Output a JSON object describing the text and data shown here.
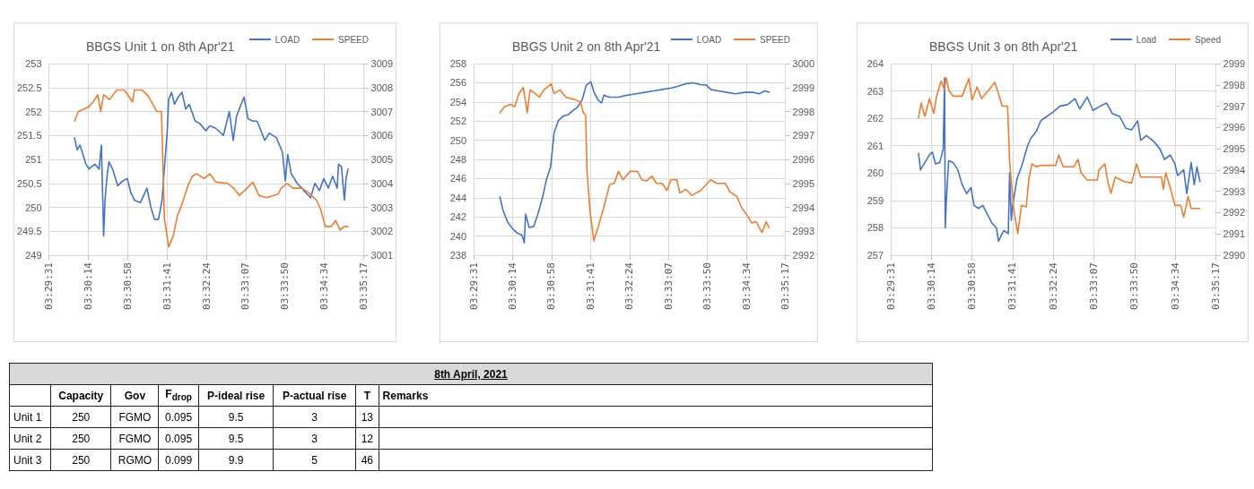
{
  "chart_data": [
    {
      "type": "line",
      "title": "BBGS Unit 1 on 8th Apr'21",
      "legend": "top right",
      "grid": true,
      "xlim": [
        3.492,
        3.588
      ],
      "xticks": [
        {
          "value": 3.492,
          "label": "03:29:31"
        },
        {
          "value": 3.504,
          "label": "03:30:14"
        },
        {
          "value": 3.516,
          "label": "03:30:58"
        },
        {
          "value": 3.528,
          "label": "03:31:41"
        },
        {
          "value": 3.54,
          "label": "03:32:24"
        },
        {
          "value": 3.552,
          "label": "03:33:07"
        },
        {
          "value": 3.564,
          "label": "03:33:50"
        },
        {
          "value": 3.576,
          "label": "03:34:34"
        },
        {
          "value": 3.588,
          "label": "03:35:17"
        }
      ],
      "ylim": [
        249,
        253
      ],
      "yticks": [
        249,
        249.5,
        250,
        250.5,
        251,
        251.5,
        252,
        252.5,
        253
      ],
      "y2lim": [
        3001,
        3009
      ],
      "y2ticks": [
        3001,
        3002,
        3003,
        3004,
        3005,
        3006,
        3007,
        3008,
        3009
      ],
      "series": [
        {
          "name": "LOAD",
          "color": "#4472c4",
          "x": [
            3.4998,
            3.5006,
            3.5015,
            3.5024,
            3.5033,
            3.5042,
            3.506,
            3.5073,
            3.508,
            3.5087,
            3.5091,
            3.5098,
            3.5103,
            3.5114,
            3.513,
            3.5145,
            3.5159,
            3.517,
            3.5181,
            3.5199,
            3.5219,
            3.5231,
            3.5242,
            3.5254,
            3.5265,
            3.5272,
            3.5281,
            3.5285,
            3.5294,
            3.5303,
            3.5314,
            3.5326,
            3.5337,
            3.5348,
            3.5366,
            3.538,
            3.5398,
            3.5411,
            3.5429,
            3.5452,
            3.547,
            3.5482,
            3.5492,
            3.5506,
            3.5515,
            3.5527,
            3.5542,
            3.5555,
            3.5578,
            3.5592,
            3.5614,
            3.5632,
            3.5641,
            3.5648,
            3.5659,
            3.5677,
            3.5691,
            3.5704,
            3.5718,
            3.5731,
            3.5745,
            3.5758,
            3.5772,
            3.5785,
            3.5799,
            3.5803,
            3.5812,
            3.5821,
            3.5826,
            3.5832
          ],
          "values": [
            251.45,
            251.2,
            251.3,
            251.1,
            250.9,
            250.8,
            250.9,
            250.8,
            251.3,
            249.4,
            250.15,
            250.7,
            250.95,
            250.8,
            250.45,
            250.55,
            250.6,
            250.3,
            250.15,
            250.1,
            250.4,
            250.0,
            249.75,
            249.75,
            250.15,
            250.8,
            251.6,
            252.25,
            252.4,
            252.15,
            252.3,
            252.4,
            252.05,
            252.15,
            251.8,
            251.75,
            251.6,
            251.7,
            251.65,
            251.5,
            252.0,
            251.4,
            251.9,
            252.15,
            252.3,
            251.85,
            251.8,
            251.8,
            251.4,
            251.55,
            251.45,
            251.15,
            250.55,
            251.1,
            250.7,
            250.5,
            250.4,
            250.3,
            250.2,
            250.5,
            250.35,
            250.6,
            250.4,
            250.65,
            250.4,
            250.9,
            250.85,
            250.15,
            250.6,
            250.8
          ]
        },
        {
          "name": "SPEED",
          "color": "#ed7d31",
          "axis": "y2",
          "x": [
            3.4998,
            3.501,
            3.5042,
            3.5055,
            3.5069,
            3.5078,
            3.5087,
            3.5105,
            3.5127,
            3.515,
            3.5175,
            3.5181,
            3.5204,
            3.5222,
            3.5235,
            3.5249,
            3.5263,
            3.5267,
            3.5272,
            3.5285,
            3.5299,
            3.5312,
            3.5326,
            3.5344,
            3.5357,
            3.5371,
            3.5393,
            3.5411,
            3.5429,
            3.5465,
            3.5483,
            3.5501,
            3.5524,
            3.5542,
            3.556,
            3.5583,
            3.5619,
            3.5628,
            3.5646,
            3.5664,
            3.5691,
            3.5713,
            3.5736,
            3.5749,
            3.5763,
            3.5781,
            3.5794,
            3.5808,
            3.5821,
            3.5832
          ],
          "values": [
            3006.6,
            3007.0,
            3007.2,
            3007.4,
            3007.7,
            3007.0,
            3007.7,
            3007.5,
            3007.9,
            3007.9,
            3007.4,
            3007.9,
            3007.9,
            3007.65,
            3007.35,
            3007.0,
            3007.0,
            3005.15,
            3002.55,
            3001.35,
            3001.8,
            3002.65,
            3003.15,
            3003.9,
            3004.3,
            3004.4,
            3004.2,
            3004.4,
            3004.05,
            3004.0,
            3003.8,
            3003.5,
            3003.8,
            3004.05,
            3003.5,
            3003.4,
            3003.55,
            3003.8,
            3004.0,
            3003.8,
            3003.8,
            3003.6,
            3003.3,
            3002.9,
            3002.2,
            3002.2,
            3002.45,
            3002.05,
            3002.2,
            3002.2
          ]
        }
      ]
    },
    {
      "type": "line",
      "title": "BBGS Unit 2 on 8th Apr'21",
      "legend": "top right",
      "grid": true,
      "xlim": [
        3.492,
        3.588
      ],
      "xticks": [
        {
          "value": 3.492,
          "label": "03:29:31"
        },
        {
          "value": 3.504,
          "label": "03:30:14"
        },
        {
          "value": 3.516,
          "label": "03:30:58"
        },
        {
          "value": 3.528,
          "label": "03:31:41"
        },
        {
          "value": 3.54,
          "label": "03:32:24"
        },
        {
          "value": 3.552,
          "label": "03:33:07"
        },
        {
          "value": 3.564,
          "label": "03:33:50"
        },
        {
          "value": 3.576,
          "label": "03:34:34"
        },
        {
          "value": 3.588,
          "label": "03:35:17"
        }
      ],
      "ylim": [
        238,
        258
      ],
      "yticks": [
        238,
        240,
        242,
        244,
        246,
        248,
        250,
        252,
        254,
        256,
        258
      ],
      "y2lim": [
        2992,
        3000
      ],
      "y2ticks": [
        2992,
        2993,
        2994,
        2995,
        2996,
        2997,
        2998,
        2999,
        3000
      ],
      "series": [
        {
          "name": "LOAD",
          "color": "#4472c4",
          "x": [
            3.5001,
            3.501,
            3.5024,
            3.5042,
            3.5055,
            3.5069,
            3.5076,
            3.508,
            3.5091,
            3.5105,
            3.5118,
            3.5132,
            3.5145,
            3.5157,
            3.5168,
            3.5181,
            3.5195,
            3.5213,
            3.5226,
            3.524,
            3.5254,
            3.5267,
            3.5281,
            3.529,
            3.5303,
            3.5314,
            3.5321,
            3.5339,
            3.5366,
            3.5393,
            3.542,
            3.5447,
            3.5474,
            3.5501,
            3.5528,
            3.5546,
            3.5574,
            3.5596,
            3.5619,
            3.5637,
            3.565,
            3.5673,
            3.57,
            3.5727,
            3.5754,
            3.5781,
            3.5799,
            3.5817,
            3.583
          ],
          "values": [
            244.1,
            242.75,
            241.5,
            240.7,
            240.3,
            240.1,
            239.3,
            242.3,
            240.9,
            241.0,
            242.3,
            244.0,
            246.0,
            247.2,
            250.8,
            252.05,
            252.5,
            252.7,
            253.1,
            253.45,
            254.2,
            255.75,
            256.1,
            255.1,
            254.2,
            253.9,
            254.7,
            254.5,
            254.5,
            254.7,
            254.85,
            255.0,
            255.15,
            255.3,
            255.45,
            255.6,
            255.9,
            256.0,
            255.8,
            255.75,
            255.3,
            255.15,
            255.0,
            254.85,
            255.0,
            255.0,
            254.85,
            255.15,
            255.0
          ]
        },
        {
          "name": "SPEED",
          "color": "#ed7d31",
          "axis": "y2",
          "x": [
            3.5001,
            3.5015,
            3.5033,
            3.5046,
            3.506,
            3.5073,
            3.5085,
            3.5094,
            3.5109,
            3.5123,
            3.5136,
            3.5159,
            3.5168,
            3.5186,
            3.5204,
            3.5231,
            3.5249,
            3.5258,
            3.5265,
            3.5269,
            3.5278,
            3.529,
            3.5303,
            3.5321,
            3.5339,
            3.5353,
            3.5366,
            3.538,
            3.5402,
            3.5425,
            3.5438,
            3.5452,
            3.547,
            3.5483,
            3.5501,
            3.5515,
            3.5528,
            3.5546,
            3.5555,
            3.5574,
            3.5592,
            3.5619,
            3.565,
            3.5668,
            3.5695,
            3.5709,
            3.5731,
            3.5745,
            3.5763,
            3.5776,
            3.579,
            3.5808,
            3.5821,
            3.583
          ],
          "values": [
            2997.95,
            2998.2,
            2998.3,
            2998.2,
            2998.75,
            2999.0,
            2997.95,
            2998.9,
            2998.75,
            2998.6,
            2998.9,
            2999.15,
            2998.75,
            2998.9,
            2998.6,
            2998.5,
            2998.4,
            2997.95,
            2997.85,
            2995.6,
            2993.9,
            2992.6,
            2993.15,
            2994.0,
            2994.95,
            2995.0,
            2995.5,
            2995.15,
            2995.5,
            2995.5,
            2995.15,
            2995.1,
            2995.3,
            2995.0,
            2995.0,
            2994.7,
            2995.15,
            2995.15,
            2994.6,
            2994.75,
            2994.5,
            2994.7,
            2995.15,
            2995.0,
            2995.0,
            2994.65,
            2994.45,
            2994.0,
            2993.65,
            2993.35,
            2993.4,
            2992.95,
            2993.4,
            2993.15
          ]
        }
      ]
    },
    {
      "type": "line",
      "title": "BBGS Unit 3 on 8th Apr'21",
      "legend": "top right",
      "grid": true,
      "xlim": [
        3.492,
        3.588
      ],
      "xticks": [
        {
          "value": 3.492,
          "label": "03:29:31"
        },
        {
          "value": 3.504,
          "label": "03:30:14"
        },
        {
          "value": 3.516,
          "label": "03:30:58"
        },
        {
          "value": 3.528,
          "label": "03:31:41"
        },
        {
          "value": 3.54,
          "label": "03:32:24"
        },
        {
          "value": 3.552,
          "label": "03:33:07"
        },
        {
          "value": 3.564,
          "label": "03:33:50"
        },
        {
          "value": 3.576,
          "label": "03:34:34"
        },
        {
          "value": 3.588,
          "label": "03:35:17"
        }
      ],
      "ylim": [
        257,
        264
      ],
      "yticks": [
        257,
        258,
        259,
        260,
        261,
        262,
        263,
        264
      ],
      "y2lim": [
        2990,
        2999
      ],
      "y2ticks": [
        2990,
        2991,
        2992,
        2993,
        2994,
        2995,
        2996,
        2997,
        2998,
        2999
      ],
      "series": [
        {
          "name": "Load",
          "color": "#4472c4",
          "x": [
            3.5002,
            3.5008,
            3.5021,
            3.5034,
            3.5043,
            3.5052,
            3.5065,
            3.5075,
            3.5079,
            3.5081,
            3.5084,
            3.5091,
            3.5104,
            3.5118,
            3.5131,
            3.5144,
            3.5157,
            3.5166,
            3.5179,
            3.5192,
            3.5205,
            3.5219,
            3.5232,
            3.5238,
            3.5254,
            3.5267,
            3.5271,
            3.5276,
            3.528,
            3.5293,
            3.5306,
            3.5324,
            3.5333,
            3.535,
            3.5363,
            3.5381,
            3.5399,
            3.542,
            3.5442,
            3.5464,
            3.5478,
            3.55,
            3.5517,
            3.5539,
            3.5557,
            3.5574,
            3.5596,
            3.5614,
            3.5631,
            3.5649,
            3.5658,
            3.5675,
            3.5697,
            3.5715,
            3.5728,
            3.5745,
            3.5759,
            3.5767,
            3.5785,
            3.5794,
            3.5807,
            3.5816,
            3.5824,
            3.5833
          ],
          "values": [
            260.72,
            260.12,
            260.39,
            260.66,
            260.77,
            260.34,
            260.39,
            260.88,
            263.48,
            258.0,
            258.93,
            260.45,
            260.39,
            260.12,
            259.58,
            259.25,
            259.47,
            258.82,
            258.71,
            258.82,
            258.5,
            258.17,
            258.0,
            257.52,
            257.9,
            257.79,
            260.01,
            258.28,
            258.82,
            259.8,
            260.23,
            260.99,
            261.26,
            261.53,
            261.91,
            262.07,
            262.23,
            262.45,
            262.5,
            262.72,
            262.34,
            262.78,
            262.29,
            262.45,
            262.56,
            262.18,
            262.07,
            261.64,
            261.58,
            261.91,
            261.2,
            261.37,
            261.15,
            260.88,
            260.5,
            260.66,
            260.34,
            259.91,
            260.12,
            259.25,
            260.39,
            259.58,
            260.23,
            259.69
          ]
        },
        {
          "name": "Speed",
          "color": "#ed7d31",
          "axis": "y2",
          "x": [
            3.5002,
            3.501,
            3.5021,
            3.5034,
            3.5047,
            3.5056,
            3.5069,
            3.5078,
            3.5084,
            3.5091,
            3.5104,
            3.5131,
            3.5151,
            3.516,
            3.5175,
            3.5188,
            3.521,
            3.5227,
            3.524,
            3.5249,
            3.5265,
            3.5271,
            3.5283,
            3.5295,
            3.5306,
            3.532,
            3.5328,
            3.5337,
            3.535,
            3.5363,
            3.5407,
            3.5416,
            3.5429,
            3.546,
            3.5473,
            3.5482,
            3.55,
            3.553,
            3.5535,
            3.5552,
            3.5561,
            3.557,
            3.5583,
            3.5609,
            3.5631,
            3.5646,
            3.5658,
            3.5679,
            3.5719,
            3.5725,
            3.5732,
            3.5745,
            3.5759,
            3.5776,
            3.5785,
            3.5798,
            3.5807,
            3.5833
          ],
          "values": [
            2996.45,
            2997.15,
            2996.52,
            2997.36,
            2996.66,
            2997.5,
            2998.19,
            2997.77,
            2998.33,
            2997.77,
            2997.47,
            2997.47,
            2998.3,
            2997.29,
            2997.91,
            2997.36,
            2997.77,
            2998.12,
            2997.5,
            2997.0,
            2997.0,
            2994.43,
            2992.2,
            2991.02,
            2992.34,
            2992.27,
            2993.6,
            2994.29,
            2994.15,
            2994.22,
            2994.22,
            2994.71,
            2994.15,
            2994.15,
            2994.5,
            2993.87,
            2993.53,
            2993.53,
            2994.01,
            2994.29,
            2993.46,
            2992.9,
            2993.67,
            2993.46,
            2993.39,
            2994.29,
            2993.67,
            2993.67,
            2993.67,
            2993.11,
            2993.87,
            2993.18,
            2992.34,
            2992.34,
            2991.79,
            2992.76,
            2992.2,
            2992.2
          ]
        }
      ]
    },
    {
      "type": "other",
      "title": "8th April, 2021",
      "categories": [
        null,
        "Capacity",
        "Gov",
        "F$_{drop}$",
        "P-ideal rise",
        "P-actual rise",
        "T",
        "Remarks"
      ],
      "y_categories": [
        "Unit 1",
        "Unit 2",
        "Unit 3"
      ],
      "cell_labels": [
        [
          "250",
          "FGMO",
          "0.095",
          "9.5",
          "3",
          "13",
          null
        ],
        [
          "250",
          "FGMO",
          "0.095",
          "9.5",
          "3",
          "12",
          null
        ],
        [
          "250",
          "RGMO",
          "0.099",
          "9.9",
          "5",
          "46",
          null
        ]
      ]
    }
  ]
}
